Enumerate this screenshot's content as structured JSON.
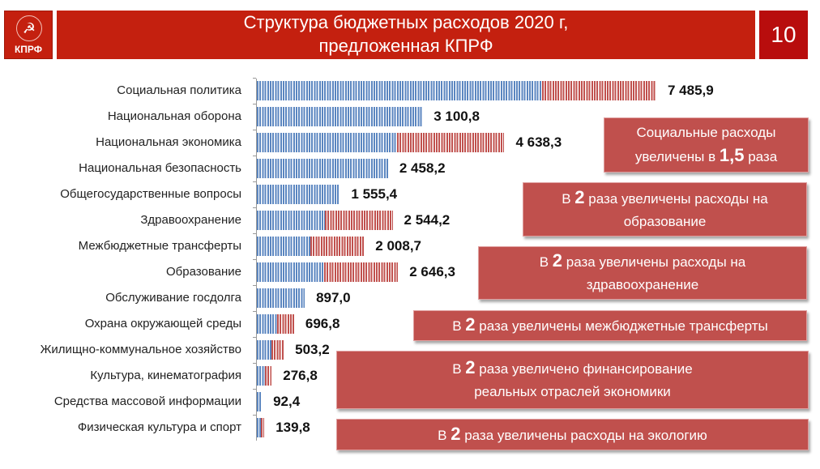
{
  "header": {
    "logo_text": "КПРФ",
    "title_line1": "Структура бюджетных расходов 2020 г,",
    "title_line2": "предложенная КПРФ",
    "page_number": "10"
  },
  "chart_data": {
    "type": "bar",
    "orientation": "horizontal",
    "stacked": true,
    "categories": [
      "Социальная политика",
      "Национальная оборона",
      "Национальная экономика",
      "Национальная безопасность",
      "Общегосударственные вопросы",
      "Здравоохранение",
      "Межбюджетные трансферты",
      "Образование",
      "Обслуживание госдолга",
      "Охрана окружающей среды",
      "Жилищно-коммунальное хозяйство",
      "Культура, кинематография",
      "Средства массовой информации",
      "Физическая культура и спорт"
    ],
    "totals": [
      7485.9,
      3100.8,
      4638.3,
      2458.2,
      1555.4,
      2544.2,
      2008.7,
      2646.3,
      897.0,
      696.8,
      503.2,
      276.8,
      92.4,
      139.8
    ],
    "data_labels": [
      "7 485,9",
      "3 100,8",
      "4 638,3",
      "2 458,2",
      "1 555,4",
      "2 544,2",
      "2 008,7",
      "2 646,3",
      "897,0",
      "696,8",
      "503,2",
      "276,8",
      "92,4",
      "139,8"
    ],
    "series": [
      {
        "color": "#5b86c0",
        "values": [
          5340,
          3100.8,
          2631,
          2458.2,
          1555.4,
          1272,
          1004,
          1257,
          897.0,
          385,
          277,
          154,
          92.4,
          70
        ]
      },
      {
        "color": "#c0504d",
        "values": [
          2146,
          0,
          2007,
          0,
          0,
          1272,
          1005,
          1389,
          0,
          312,
          226,
          123,
          0,
          70
        ]
      }
    ],
    "xlim": [
      0,
      7800
    ],
    "grid": false,
    "legend": "none"
  },
  "callouts": [
    {
      "pre": "Социальные расходы",
      "line2_pre": "увеличены в ",
      "num": "1,5",
      "post": " раза"
    },
    {
      "pre": "В ",
      "num": "2",
      "post": " раза увеличены расходы на",
      "line2": "образование"
    },
    {
      "pre": "В ",
      "num": "2",
      "post": " раза увеличены расходы на",
      "line2": "здравоохранение"
    },
    {
      "pre": "В ",
      "num": "2",
      "post": " раза увеличены межбюджетные трансферты"
    },
    {
      "pre": "В ",
      "num": "2",
      "post": " раза увеличено финансирование",
      "line2": "реальных отраслей экономики"
    },
    {
      "pre": "В ",
      "num": "2",
      "post": " раза увеличены расходы на экологию"
    }
  ]
}
